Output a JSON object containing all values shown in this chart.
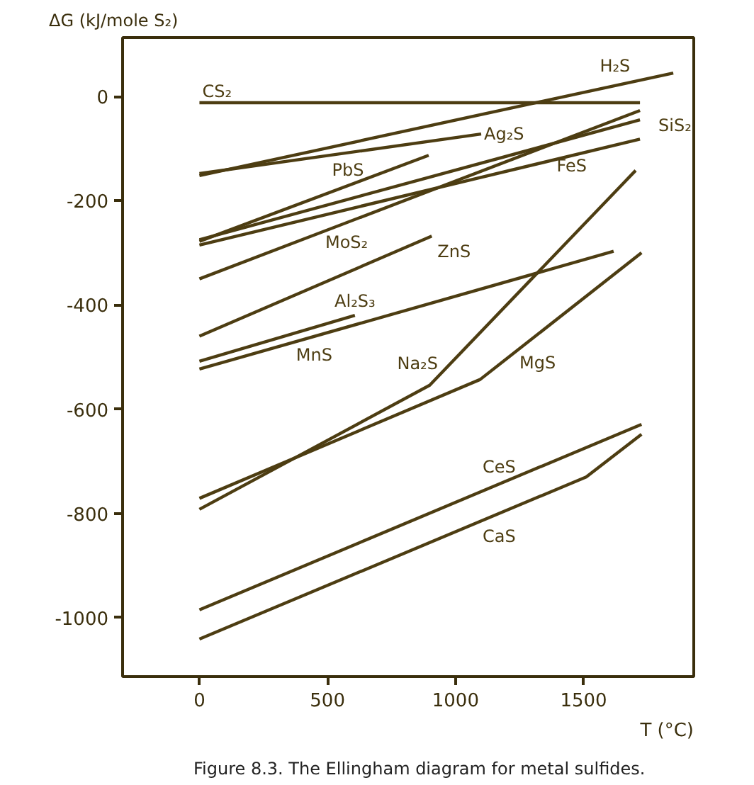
{
  "chart_data": {
    "type": "line",
    "ylabel": "ΔG (kJ/mole S₂)",
    "xlabel": "T (°C)",
    "xlim": [
      -300,
      1930
    ],
    "ylim": [
      -1113,
      113
    ],
    "xticks": [
      0,
      500,
      1000,
      1500
    ],
    "yticks": [
      0,
      -200,
      -400,
      -600,
      -800,
      -1000
    ],
    "grid": false,
    "marker": "none",
    "line_style": "solid",
    "series": [
      {
        "name": "CS₂",
        "color": "#4d3d12",
        "x": [
          0,
          1720
        ],
        "values": [
          -12,
          -12
        ]
      },
      {
        "name": "H₂S",
        "color": "#4d3d12",
        "x": [
          0,
          1850
        ],
        "values": [
          -152,
          45
        ]
      },
      {
        "name": "Ag₂S",
        "color": "#4d3d12",
        "x": [
          0,
          1100
        ],
        "values": [
          -148,
          -72
        ]
      },
      {
        "name": "PbS",
        "color": "#4d3d12",
        "x": [
          0,
          895
        ],
        "values": [
          -278,
          -113
        ]
      },
      {
        "name": "FeS",
        "color": "#4d3d12",
        "x": [
          0,
          1720
        ],
        "values": [
          -285,
          -82
        ]
      },
      {
        "name": "SiS₂",
        "color": "#4d3d12",
        "x": [
          0,
          1720
        ],
        "values": [
          -275,
          -45
        ]
      },
      {
        "name": "MoS₂",
        "color": "#4d3d12",
        "x": [
          0,
          1720
        ],
        "values": [
          -350,
          -27
        ]
      },
      {
        "name": "ZnS",
        "color": "#4d3d12",
        "x": [
          0,
          907
        ],
        "values": [
          -460,
          -268
        ]
      },
      {
        "name": "Al₂S₃",
        "color": "#4d3d12",
        "x": [
          0,
          607
        ],
        "values": [
          -508,
          -420
        ]
      },
      {
        "name": "MnS",
        "color": "#4d3d12",
        "x": [
          0,
          1617
        ],
        "values": [
          -523,
          -297
        ]
      },
      {
        "name": "Na₂S",
        "color": "#4d3d12",
        "x": [
          0,
          899,
          1703
        ],
        "values": [
          -792,
          -554,
          -142
        ]
      },
      {
        "name": "MgS",
        "color": "#4d3d12",
        "x": [
          0,
          1096,
          1726
        ],
        "values": [
          -771,
          -543,
          -300
        ]
      },
      {
        "name": "CeS",
        "color": "#4d3d12",
        "x": [
          0,
          1726
        ],
        "values": [
          -985,
          -629
        ]
      },
      {
        "name": "CaS",
        "color": "#4d3d12",
        "x": [
          0,
          1510,
          1726
        ],
        "values": [
          -1041,
          -730,
          -648
        ]
      }
    ],
    "annotations": [
      "Figure 8.3. The Ellingham diagram for metal sulfides."
    ]
  }
}
